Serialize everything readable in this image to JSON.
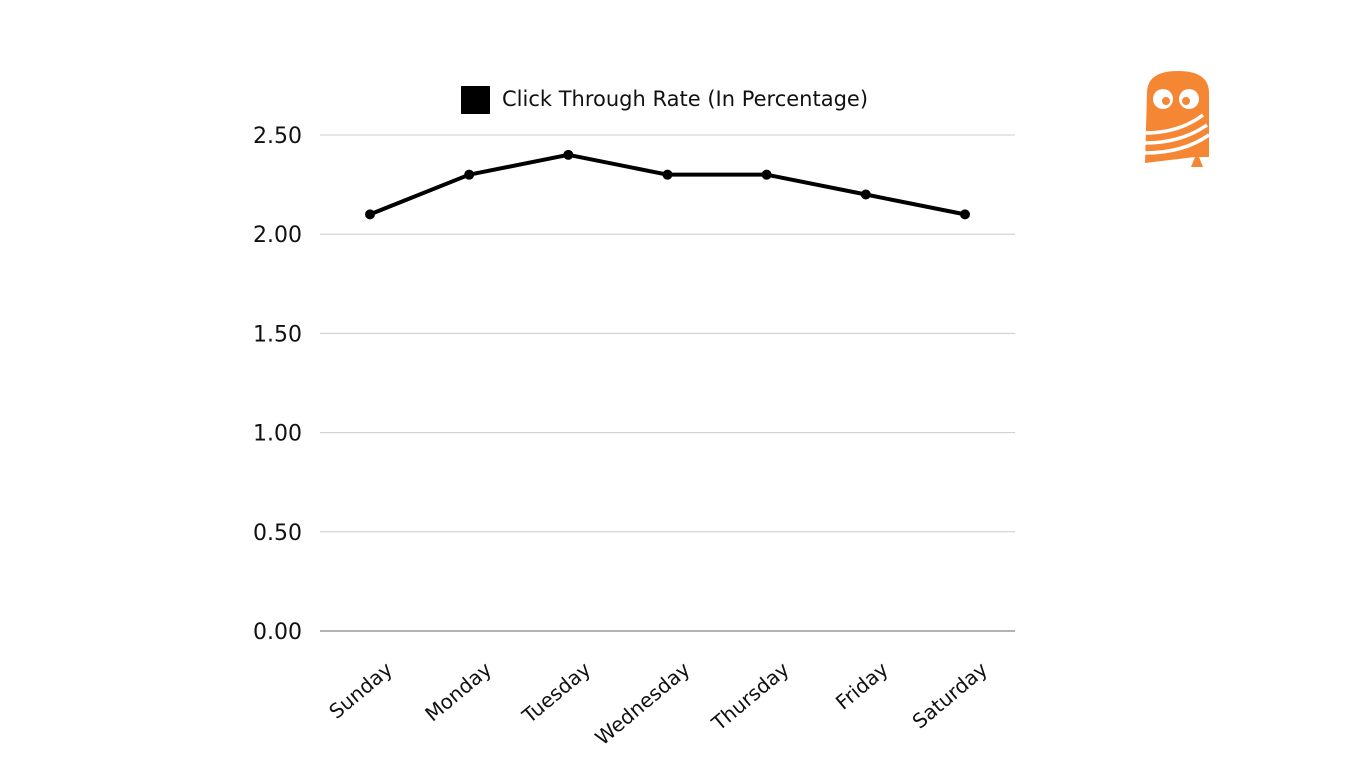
{
  "chart_data": {
    "type": "line",
    "categories": [
      "Sunday",
      "Monday",
      "Tuesday",
      "Wednesday",
      "Thursday",
      "Friday",
      "Saturday"
    ],
    "series": [
      {
        "name": "Click Through Rate (In Percentage)",
        "values": [
          2.1,
          2.3,
          2.4,
          2.3,
          2.3,
          2.2,
          2.1
        ]
      }
    ],
    "yticks": [
      "0.00",
      "0.50",
      "1.00",
      "1.50",
      "2.00",
      "2.50"
    ],
    "ylim": [
      0,
      2.5
    ],
    "grid": true,
    "legend_position": "top-center",
    "title": "",
    "xlabel": "",
    "ylabel": ""
  },
  "colors": {
    "series": "#000000",
    "grid": "#cccccc",
    "axis": "#999999",
    "logo": "#f58634"
  },
  "logo": {
    "icon": "owl-logo-icon"
  }
}
